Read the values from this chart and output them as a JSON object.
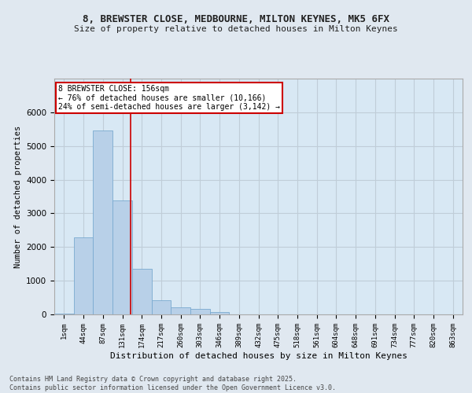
{
  "title_line1": "8, BREWSTER CLOSE, MEDBOURNE, MILTON KEYNES, MK5 6FX",
  "title_line2": "Size of property relative to detached houses in Milton Keynes",
  "xlabel": "Distribution of detached houses by size in Milton Keynes",
  "ylabel": "Number of detached properties",
  "bar_labels": [
    "1sqm",
    "44sqm",
    "87sqm",
    "131sqm",
    "174sqm",
    "217sqm",
    "260sqm",
    "303sqm",
    "346sqm",
    "389sqm",
    "432sqm",
    "475sqm",
    "518sqm",
    "561sqm",
    "604sqm",
    "648sqm",
    "691sqm",
    "734sqm",
    "777sqm",
    "820sqm",
    "863sqm"
  ],
  "bar_values": [
    30,
    2280,
    5450,
    3380,
    1350,
    410,
    220,
    160,
    70,
    10,
    0,
    0,
    0,
    0,
    0,
    0,
    0,
    0,
    0,
    0,
    0
  ],
  "bar_color": "#b8d0e8",
  "bar_edge_color": "#7aaad0",
  "vline_x": 3.42,
  "vline_color": "#cc0000",
  "annotation_text": "8 BREWSTER CLOSE: 156sqm\n← 76% of detached houses are smaller (10,166)\n24% of semi-detached houses are larger (3,142) →",
  "annotation_box_color": "#cc0000",
  "ylim": [
    0,
    7000
  ],
  "yticks": [
    0,
    1000,
    2000,
    3000,
    4000,
    5000,
    6000
  ],
  "bg_color": "#e0e8f0",
  "plot_bg_color": "#d8e8f4",
  "grid_color": "#c0cdd8",
  "footer_line1": "Contains HM Land Registry data © Crown copyright and database right 2025.",
  "footer_line2": "Contains public sector information licensed under the Open Government Licence v3.0."
}
